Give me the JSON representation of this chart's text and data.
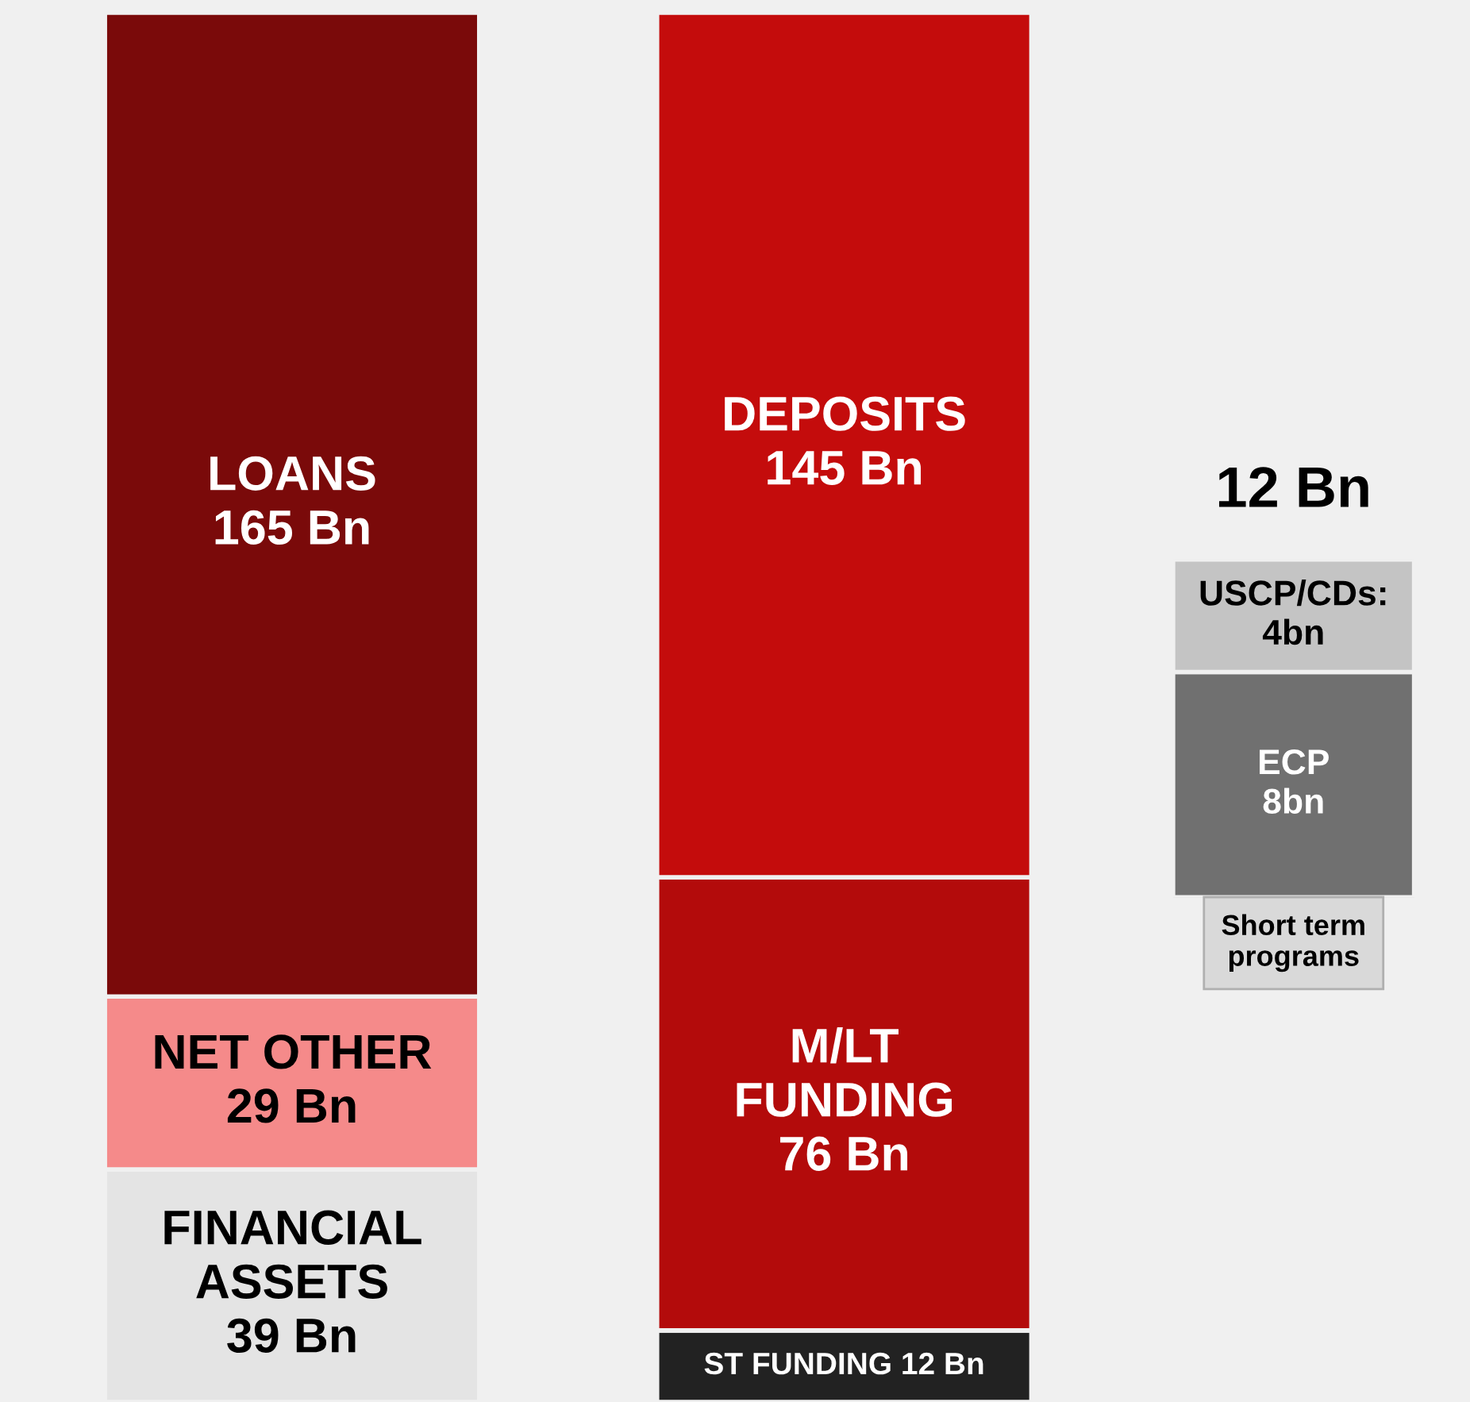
{
  "chart_data": [
    {
      "type": "bar",
      "stacked": true,
      "categories": [
        null,
        null
      ],
      "tick_labels": false,
      "series": [
        {
          "colors": [
            "#e4e4e4",
            "#222222"
          ],
          "values": [
            39,
            12
          ],
          "value_labels": [
            "FINANCIAL\nASSETS\n39 Bn",
            "ST FUNDING 12 Bn"
          ]
        },
        {
          "colors": [
            "#f58a8a",
            "#b30b0b"
          ],
          "values": [
            29,
            76
          ],
          "value_labels": [
            "NET OTHER\n29 Bn",
            "M/LT\nFUNDING\n76 Bn"
          ]
        },
        {
          "colors": [
            "#7a0a0a",
            "#c40c0c"
          ],
          "values": [
            165,
            145
          ],
          "value_labels": [
            "LOANS\n165 Bn",
            "DEPOSITS\n145 Bn"
          ]
        }
      ]
    },
    {
      "type": "bar",
      "stacked": true,
      "categories": [
        null
      ],
      "tick_labels": false,
      "totals": [
        "12 Bn"
      ],
      "annotations": [
        "Short term\nprograms"
      ],
      "series": [
        {
          "colors": [
            "#707070"
          ],
          "values": [
            8
          ],
          "value_labels": [
            "ECP\n8bn"
          ]
        },
        {
          "colors": [
            "#c4c4c4"
          ],
          "values": [
            4
          ],
          "value_labels": [
            "USCP/CDs:\n4bn"
          ]
        }
      ]
    }
  ]
}
